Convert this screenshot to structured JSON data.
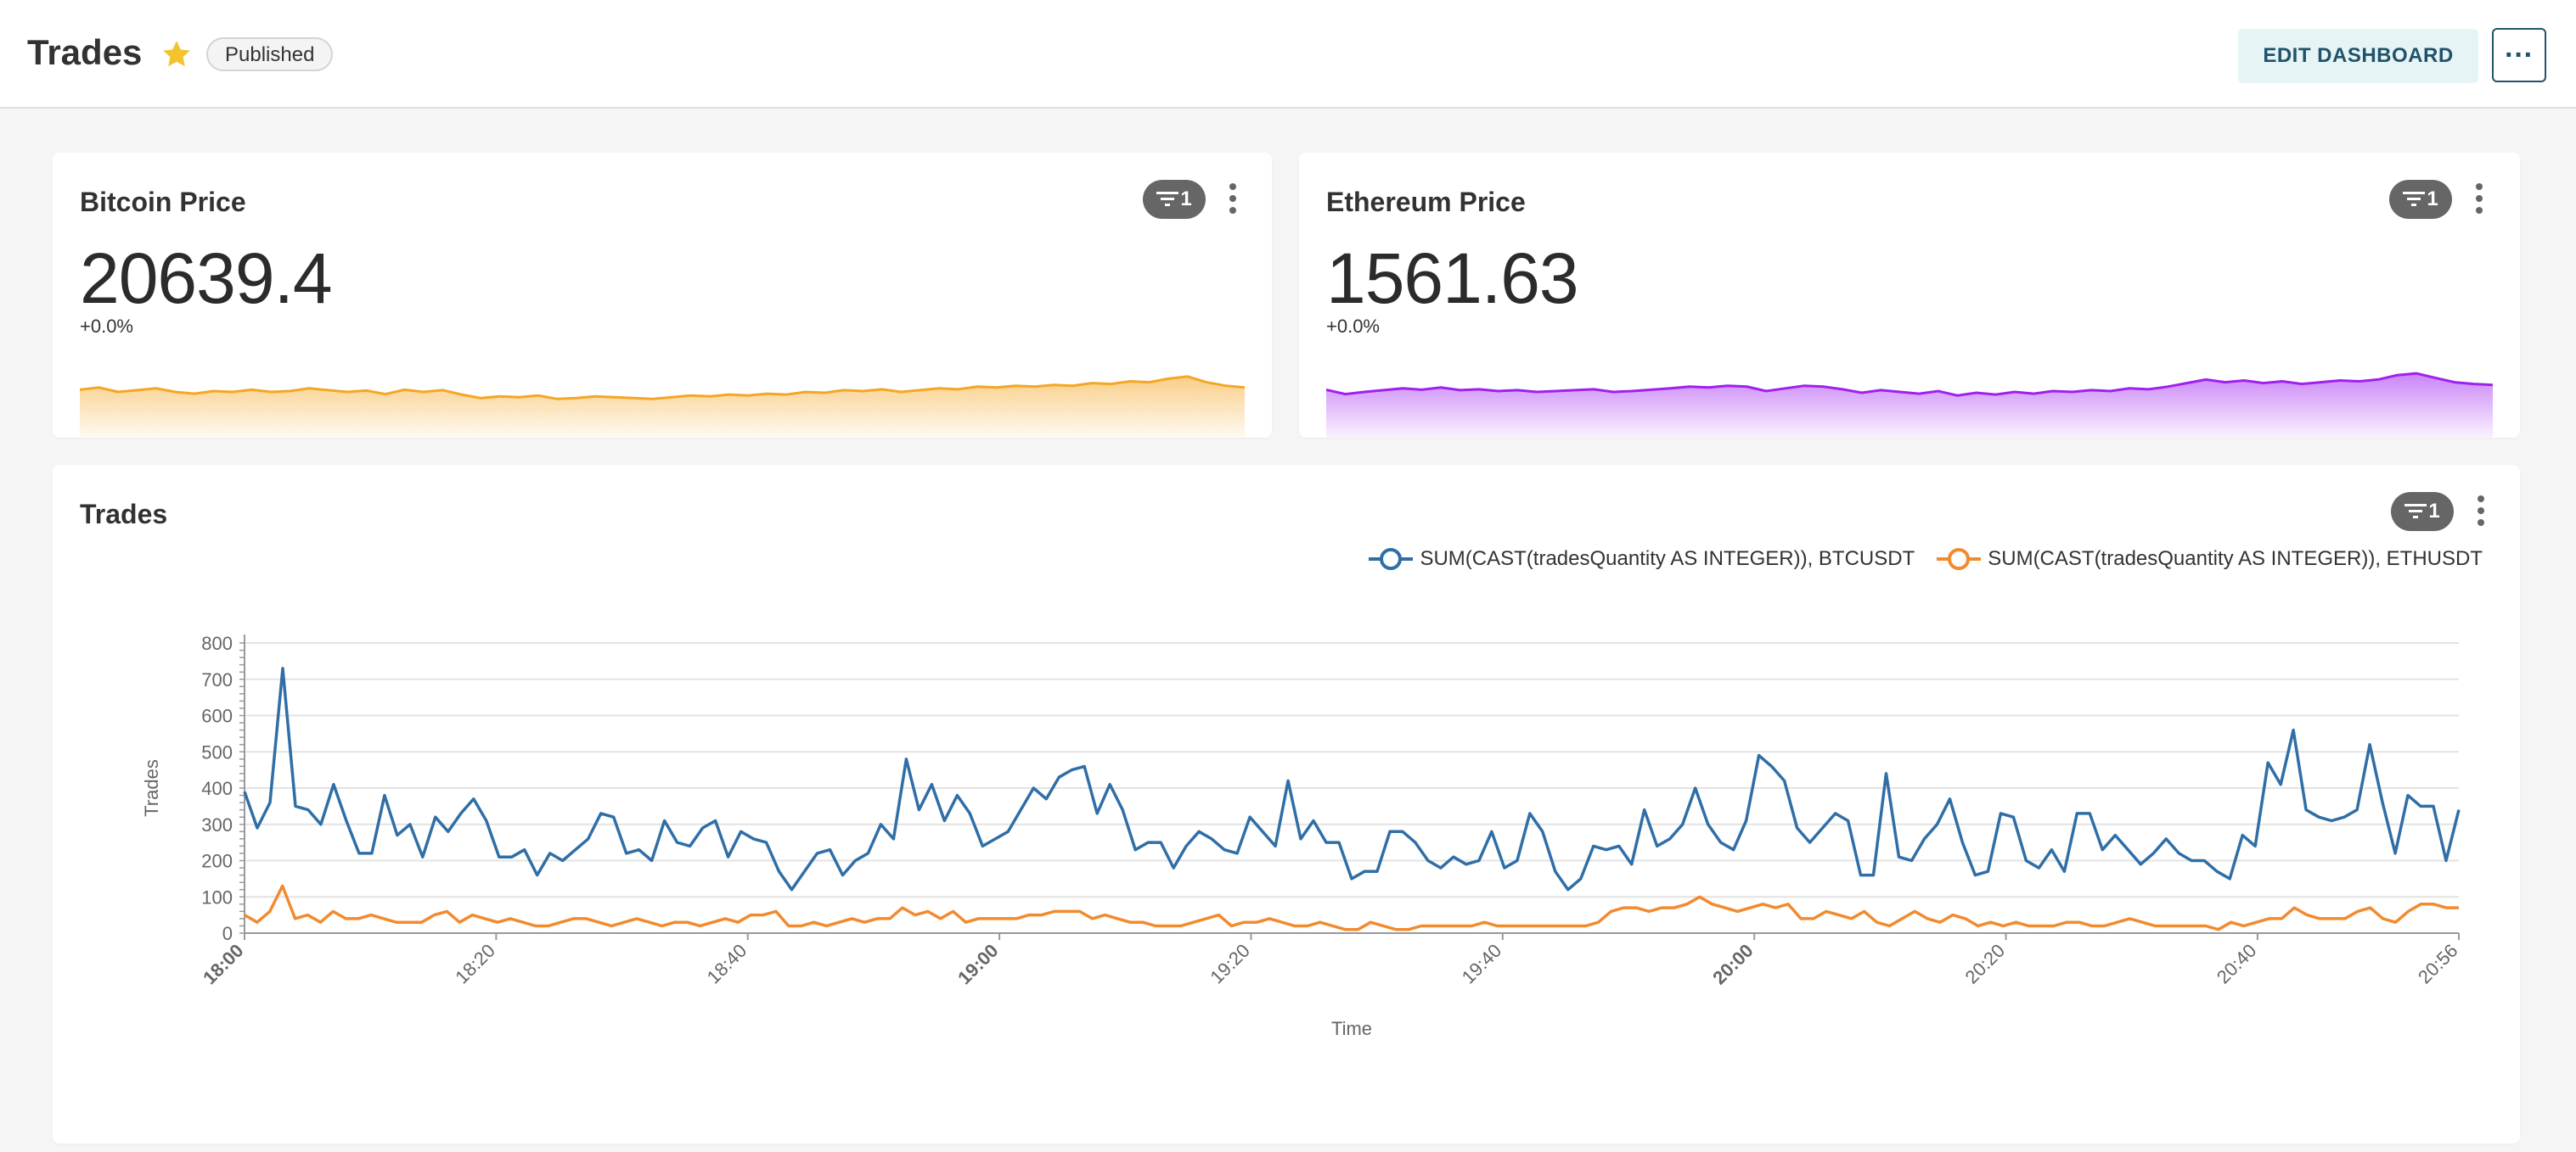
{
  "header": {
    "title": "Trades",
    "badge": "Published",
    "edit_button": "EDIT DASHBOARD",
    "more_button": "···",
    "colors": {
      "star": "#f4c430",
      "edit_bg": "#e6f4f6",
      "edit_text": "#20536b"
    }
  },
  "cards": {
    "bitcoin": {
      "title": "Bitcoin Price",
      "value": "20639.4",
      "delta": "+0.0%",
      "filter_count": "1",
      "color": "#f5a623",
      "trend": [
        0.45,
        0.4,
        0.5,
        0.46,
        0.42,
        0.5,
        0.54,
        0.48,
        0.5,
        0.45,
        0.5,
        0.48,
        0.42,
        0.46,
        0.5,
        0.47,
        0.55,
        0.45,
        0.5,
        0.46,
        0.56,
        0.64,
        0.6,
        0.62,
        0.58,
        0.66,
        0.64,
        0.6,
        0.62,
        0.64,
        0.66,
        0.62,
        0.58,
        0.6,
        0.56,
        0.58,
        0.54,
        0.56,
        0.5,
        0.52,
        0.46,
        0.48,
        0.44,
        0.5,
        0.46,
        0.42,
        0.44,
        0.38,
        0.4,
        0.36,
        0.38,
        0.34,
        0.36,
        0.3,
        0.32,
        0.26,
        0.28,
        0.2,
        0.15,
        0.28,
        0.36,
        0.4
      ]
    },
    "ethereum": {
      "title": "Ethereum Price",
      "value": "1561.63",
      "delta": "+0.0%",
      "filter_count": "1",
      "color": "#a020f0",
      "trend": [
        0.45,
        0.55,
        0.5,
        0.46,
        0.42,
        0.45,
        0.4,
        0.46,
        0.44,
        0.48,
        0.46,
        0.5,
        0.48,
        0.46,
        0.44,
        0.5,
        0.48,
        0.45,
        0.42,
        0.38,
        0.4,
        0.36,
        0.38,
        0.48,
        0.42,
        0.36,
        0.38,
        0.44,
        0.52,
        0.46,
        0.5,
        0.54,
        0.48,
        0.58,
        0.52,
        0.56,
        0.5,
        0.54,
        0.48,
        0.5,
        0.46,
        0.48,
        0.42,
        0.44,
        0.38,
        0.3,
        0.22,
        0.28,
        0.24,
        0.3,
        0.26,
        0.32,
        0.28,
        0.24,
        0.26,
        0.22,
        0.12,
        0.08,
        0.18,
        0.28,
        0.32,
        0.34
      ]
    }
  },
  "trades_card": {
    "title": "Trades",
    "filter_count": "1",
    "chart_data": {
      "type": "line",
      "xlabel": "Time",
      "ylabel": "Trades",
      "ylim": [
        0,
        800
      ],
      "yticks": [
        0,
        100,
        200,
        300,
        400,
        500,
        600,
        700,
        800
      ],
      "xlim_minutes": [
        0,
        176
      ],
      "xticks": [
        {
          "label": "18:00",
          "minute": 0,
          "bold": true
        },
        {
          "label": "18:20",
          "minute": 20,
          "bold": false
        },
        {
          "label": "18:40",
          "minute": 40,
          "bold": false
        },
        {
          "label": "19:00",
          "minute": 60,
          "bold": true
        },
        {
          "label": "19:20",
          "minute": 80,
          "bold": false
        },
        {
          "label": "19:40",
          "minute": 100,
          "bold": false
        },
        {
          "label": "20:00",
          "minute": 120,
          "bold": true
        },
        {
          "label": "20:20",
          "minute": 140,
          "bold": false
        },
        {
          "label": "20:40",
          "minute": 160,
          "bold": false
        },
        {
          "label": "20:56",
          "minute": 176,
          "bold": false
        }
      ],
      "grid": true,
      "legend_position": "top-right",
      "series": [
        {
          "name": "SUM(CAST(tradesQuantity AS INTEGER)), BTCUSDT",
          "color": "#2f6ea6",
          "values": [
            390,
            290,
            360,
            730,
            350,
            340,
            300,
            410,
            310,
            220,
            220,
            380,
            270,
            300,
            210,
            320,
            280,
            330,
            370,
            310,
            210,
            210,
            230,
            160,
            220,
            200,
            230,
            260,
            330,
            320,
            220,
            230,
            200,
            310,
            250,
            240,
            290,
            310,
            210,
            280,
            260,
            250,
            170,
            120,
            170,
            220,
            230,
            160,
            200,
            220,
            300,
            260,
            480,
            340,
            410,
            310,
            380,
            330,
            240,
            260,
            280,
            340,
            400,
            370,
            430,
            450,
            460,
            330,
            410,
            340,
            230,
            250,
            250,
            180,
            240,
            280,
            260,
            230,
            220,
            320,
            280,
            240,
            420,
            260,
            310,
            250,
            250,
            150,
            170,
            170,
            280,
            280,
            250,
            200,
            180,
            210,
            190,
            200,
            280,
            180,
            200,
            330,
            280,
            170,
            120,
            150,
            240,
            230,
            240,
            190,
            340,
            240,
            260,
            300,
            400,
            300,
            250,
            230,
            310,
            490,
            460,
            420,
            290,
            250,
            290,
            330,
            310,
            160,
            160,
            440,
            210,
            200,
            260,
            300,
            370,
            250,
            160,
            170,
            330,
            320,
            200,
            180,
            230,
            170,
            330,
            330,
            230,
            270,
            230,
            190,
            220,
            260,
            220,
            200,
            200,
            170,
            150,
            270,
            240,
            470,
            410,
            560,
            340,
            320,
            310,
            320,
            340,
            520,
            360,
            220,
            380,
            350,
            350,
            200,
            340
          ]
        },
        {
          "name": "SUM(CAST(tradesQuantity AS INTEGER)), ETHUSDT",
          "color": "#f28a2e",
          "values": [
            50,
            30,
            60,
            130,
            40,
            50,
            30,
            60,
            40,
            40,
            50,
            40,
            30,
            30,
            30,
            50,
            60,
            30,
            50,
            40,
            30,
            40,
            30,
            20,
            20,
            30,
            40,
            40,
            30,
            20,
            30,
            40,
            30,
            20,
            30,
            30,
            20,
            30,
            40,
            30,
            50,
            50,
            60,
            20,
            20,
            30,
            20,
            30,
            40,
            30,
            40,
            40,
            70,
            50,
            60,
            40,
            60,
            30,
            40,
            40,
            40,
            40,
            50,
            50,
            60,
            60,
            60,
            40,
            50,
            40,
            30,
            30,
            20,
            20,
            20,
            30,
            40,
            50,
            20,
            30,
            30,
            40,
            30,
            20,
            20,
            30,
            20,
            10,
            10,
            30,
            20,
            10,
            10,
            20,
            20,
            20,
            20,
            20,
            30,
            20,
            20,
            20,
            20,
            20,
            20,
            20,
            20,
            30,
            60,
            70,
            70,
            60,
            70,
            70,
            80,
            100,
            80,
            70,
            60,
            70,
            80,
            70,
            80,
            40,
            40,
            60,
            50,
            40,
            60,
            30,
            20,
            40,
            60,
            40,
            30,
            50,
            40,
            20,
            30,
            20,
            30,
            20,
            20,
            20,
            30,
            30,
            20,
            20,
            30,
            40,
            30,
            20,
            20,
            20,
            20,
            20,
            10,
            30,
            20,
            30,
            40,
            40,
            70,
            50,
            40,
            40,
            40,
            60,
            70,
            40,
            30,
            60,
            80,
            80,
            70,
            70
          ]
        }
      ]
    }
  }
}
